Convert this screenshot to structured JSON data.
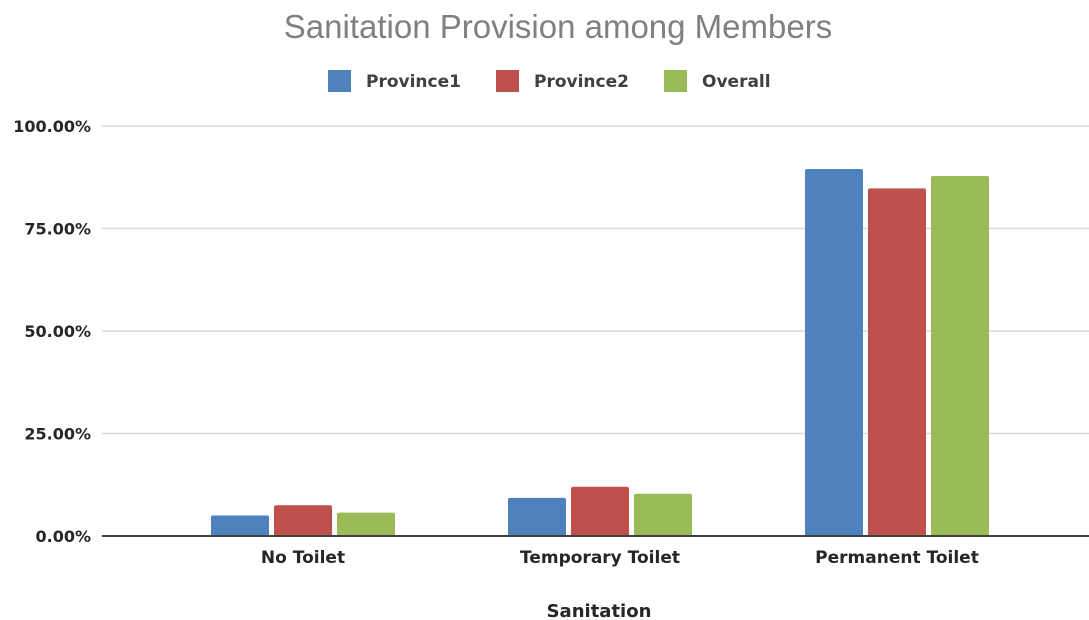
{
  "chart_data": {
    "type": "bar",
    "title": "Sanitation Provision among Members",
    "xlabel": "Sanitation",
    "ylabel": "",
    "categories": [
      "No Toilet",
      "Temporary Toilet",
      "Permanent Toilet"
    ],
    "series": [
      {
        "name": "Province1",
        "color": "#4f81bd",
        "values": [
          0.05,
          0.093,
          0.895
        ]
      },
      {
        "name": "Province2",
        "color": "#c0504d",
        "values": [
          0.075,
          0.12,
          0.848
        ]
      },
      {
        "name": "Overall",
        "color": "#9bbb59",
        "values": [
          0.057,
          0.103,
          0.878
        ]
      }
    ],
    "ylim": [
      0,
      1
    ],
    "yticks": [
      0,
      0.25,
      0.5,
      0.75,
      1
    ],
    "ytick_labels": [
      "0.00%",
      "25.00%",
      "50.00%",
      "75.00%",
      "100.00%"
    ],
    "y_format": "percent",
    "grid": true,
    "legend_position": "top"
  }
}
